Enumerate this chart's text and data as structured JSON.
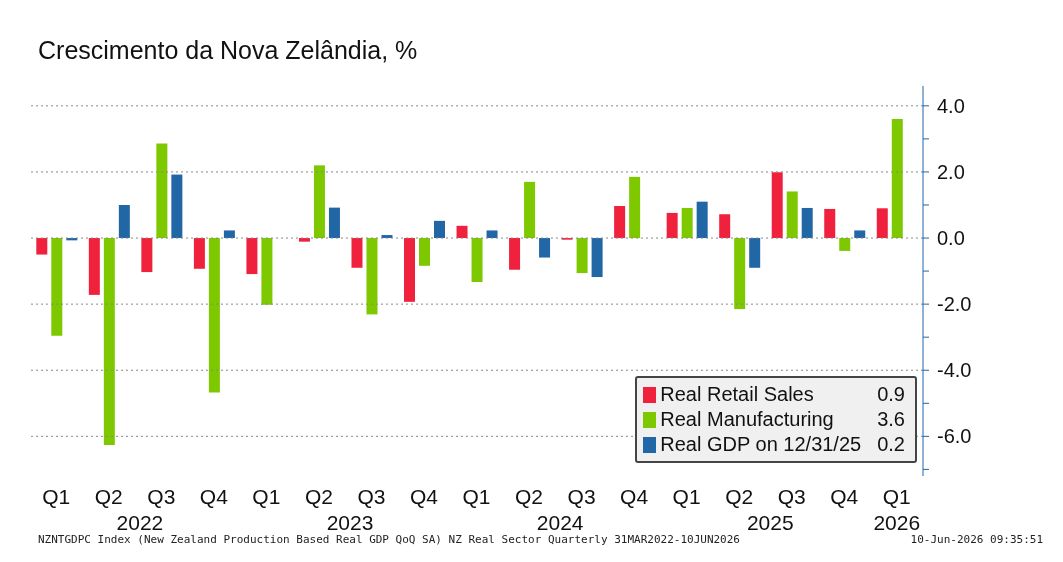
{
  "chart_data": {
    "type": "bar",
    "title": "Crescimento da Nova Zelândia, %",
    "categories": [
      "Q1",
      "Q2",
      "Q3",
      "Q4",
      "Q1",
      "Q2",
      "Q3",
      "Q4",
      "Q1",
      "Q2",
      "Q3",
      "Q4",
      "Q1",
      "Q2",
      "Q3",
      "Q4",
      "Q1"
    ],
    "series": [
      {
        "name": "Real Retail Sales 0.9",
        "color": "#f0213c",
        "values": [
          -0.5,
          -1.72,
          -1.03,
          -0.93,
          -1.09,
          -0.11,
          -0.9,
          -1.93,
          0.37,
          -0.96,
          -0.05,
          0.97,
          0.76,
          0.72,
          1.99,
          0.88,
          0.9
        ]
      },
      {
        "name": "Real Manufacturing 3.6",
        "color": "#7ec800",
        "values": [
          -2.96,
          -6.26,
          2.86,
          -4.67,
          -2.02,
          2.2,
          -2.31,
          -0.84,
          -1.33,
          1.7,
          -1.06,
          1.85,
          0.91,
          -2.15,
          1.41,
          -0.39,
          3.6
        ]
      },
      {
        "name": "Real GDP on 12/31/25 0.2",
        "color": "#2166a5",
        "values": [
          -0.07,
          1.0,
          1.92,
          0.23,
          null,
          0.92,
          0.09,
          0.52,
          0.23,
          -0.59,
          -1.18,
          null,
          1.1,
          -0.9,
          0.91,
          0.23,
          null
        ]
      }
    ],
    "ylim": [
      -7.2,
      4.6
    ],
    "yticks": [
      {
        "value": 4,
        "label": "4.0"
      },
      {
        "value": 3,
        "label": null
      },
      {
        "value": 2,
        "label": "2.0"
      },
      {
        "value": 1,
        "label": null
      },
      {
        "value": 0,
        "label": "0.0"
      },
      {
        "value": -1,
        "label": null
      },
      {
        "value": -2,
        "label": "-2.0"
      },
      {
        "value": -3,
        "label": null
      },
      {
        "value": -4,
        "label": "-4.0"
      },
      {
        "value": -5,
        "label": null
      },
      {
        "value": -6,
        "label": "-6.0"
      },
      {
        "value": -7,
        "label": null
      }
    ],
    "grid": "y",
    "legend": "bottom right",
    "annotations": [
      "2022",
      "2023",
      "2024",
      "2025",
      "2026",
      "NZNTGDPC Index (New Zealand Production Based Real GDP QoQ SA) NZ Real Sector Quarterly 31MAR2022-10JUN2026",
      "10-Jun-2026 09:35:51"
    ]
  }
}
